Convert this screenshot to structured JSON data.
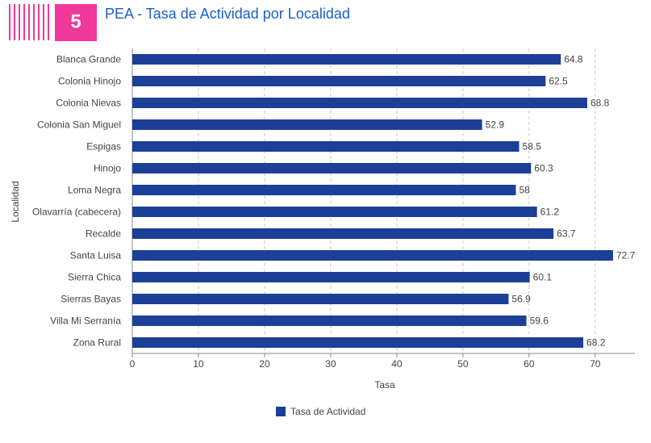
{
  "badge": "5",
  "chart_data": {
    "type": "bar",
    "orientation": "horizontal",
    "title": "PEA - Tasa de Actividad por Localidad",
    "x_label": "Tasa",
    "y_label": "Localidad",
    "categories": [
      "Blanca Grande",
      "Colonia Hinojo",
      "Colonia Nievas",
      "Colonia San Miguel",
      "Espigas",
      "Hinojo",
      "Loma Negra",
      "Olavarría (cabecera)",
      "Recalde",
      "Santa Luisa",
      "Sierra Chica",
      "Sierras Bayas",
      "Villa Mi Serranía",
      "Zona Rural"
    ],
    "series": [
      {
        "name": "Tasa de Actividad",
        "color": "#1c3f98",
        "values": [
          64.8,
          62.5,
          68.8,
          52.9,
          58.5,
          60.3,
          58,
          61.2,
          63.7,
          72.7,
          60.1,
          56.9,
          59.6,
          68.2
        ]
      }
    ],
    "xlim": [
      0,
      76
    ],
    "xticks": [
      0,
      10,
      20,
      30,
      40,
      50,
      60,
      70
    ],
    "grid": true,
    "legend": "bottom"
  }
}
